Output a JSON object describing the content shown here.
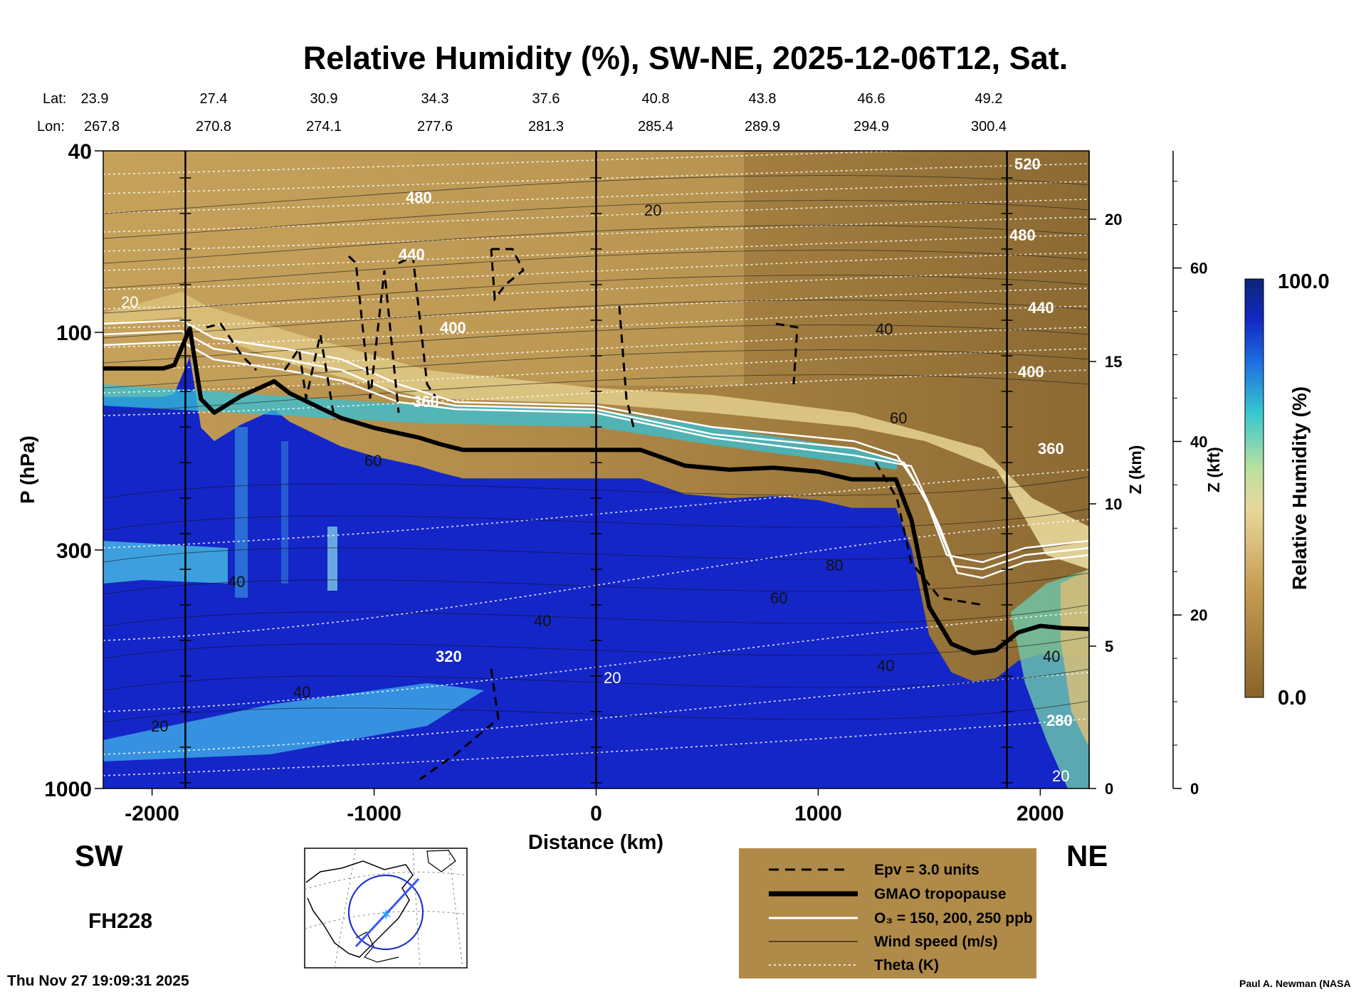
{
  "title": "Relative Humidity (%), SW-NE, 2025-12-06T12, Sat.",
  "header": {
    "lat_label": "Lat:",
    "lon_label": "Lon:",
    "lat_values": [
      "23.9",
      "27.4",
      "30.9",
      "34.3",
      "37.6",
      "40.8",
      "43.8",
      "46.6",
      "49.2"
    ],
    "lon_values": [
      "267.8",
      "270.8",
      "274.1",
      "277.6",
      "281.3",
      "285.4",
      "289.9",
      "294.9",
      "300.4"
    ]
  },
  "labels": {
    "sw": "SW",
    "ne": "NE",
    "fh": "FH228",
    "timestamp": "Thu Nov 27 19:09:31 2025",
    "credit": "Paul A. Newman (NASA"
  },
  "chart_data": {
    "type": "heatmap",
    "title": "Relative Humidity (%), SW-NE, 2025-12-06T12, Sat.",
    "xlabel": "Distance (km)",
    "ylabel": "P (hPa)",
    "y2label": "Z (km)",
    "y3label": "Z (kft)",
    "xlim": [
      -2220,
      2220
    ],
    "ylim": [
      1000,
      40
    ],
    "y_scale": "log",
    "x_ticks": [
      "-2000",
      "-1000",
      "0",
      "1000",
      "2000"
    ],
    "y_ticks": [
      "40",
      "100",
      "300",
      "1000"
    ],
    "z_km_ticks": [
      "0",
      "5",
      "10",
      "15",
      "20"
    ],
    "z_kft_ticks": [
      "0",
      "20",
      "40",
      "60"
    ],
    "colorbar": {
      "label": "Relative Humidity (%)",
      "max_label": "100.0",
      "min_label": "0.0",
      "low_color": "#8a6a2e",
      "mid_color": "#d8c06a",
      "high_color": "#0a2a8c"
    },
    "tropopause": {
      "x": [
        -2220,
        -1950,
        -1900,
        -1830,
        -1780,
        -1720,
        -1600,
        -1450,
        -1380,
        -1300,
        -1150,
        -1000,
        -800,
        -700,
        -600,
        -400,
        -200,
        0,
        200,
        400,
        600,
        800,
        1000,
        1150,
        1350,
        1420,
        1500,
        1600,
        1700,
        1800,
        1900,
        2000,
        2100,
        2220
      ],
      "p": [
        120,
        120,
        118,
        98,
        140,
        150,
        138,
        128,
        136,
        142,
        154,
        162,
        170,
        176,
        181,
        181,
        181,
        181,
        181,
        196,
        200,
        198,
        202,
        210,
        210,
        258,
        400,
        482,
        505,
        497,
        455,
        440,
        445,
        447
      ]
    },
    "contour_labels": {
      "rh": [
        "20",
        "40",
        "60",
        "80"
      ],
      "theta": [
        "280",
        "320",
        "360",
        "400",
        "440",
        "480",
        "520"
      ]
    },
    "legend": [
      {
        "label": "Epv = 3.0 units"
      },
      {
        "label": "GMAO tropopause"
      },
      {
        "label": "O₃ = 150, 200, 250 ppb"
      },
      {
        "label": "Wind speed (m/s)"
      },
      {
        "label": "Theta (K)"
      }
    ]
  }
}
